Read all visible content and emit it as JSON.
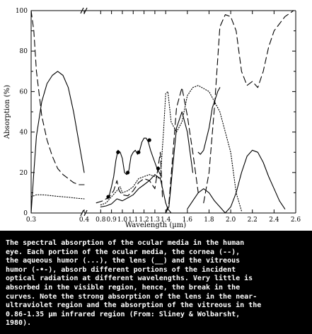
{
  "chart_data": {
    "type": "line",
    "title": "",
    "xlabel": "Wavelength  (µm)",
    "ylabel": "Absorption  (%)",
    "xlim_left": [
      0.3,
      0.4
    ],
    "xlim_right": [
      0.7,
      2.6
    ],
    "ylim": [
      0,
      100
    ],
    "x_ticks_left": [
      "0.3",
      "0.4"
    ],
    "x_ticks_right": [
      "0.8",
      "0.9",
      "1.0",
      "1.1",
      "1.2",
      "1.3",
      "1.4",
      "1.6",
      "1.8",
      "2.0",
      "2.2",
      "2.4",
      "2.6"
    ],
    "y_ticks": [
      "0",
      "20",
      "40",
      "60",
      "80",
      "100"
    ],
    "axis_break": "between 0.4 and 0.7 µm",
    "grid": false,
    "legend": "none (identified in caption)",
    "series": [
      {
        "key": "cornea",
        "style": "dashed",
        "segments": [
          {
            "x": [
              0.3,
              0.305,
              0.31,
              0.32,
              0.33,
              0.34,
              0.35,
              0.36,
              0.37,
              0.38,
              0.39,
              0.4
            ],
            "y": [
              100,
              90,
              70,
              48,
              36,
              28,
              22,
              19,
              17,
              15,
              14,
              14
            ]
          },
          {
            "x": [
              0.76,
              0.82,
              0.88,
              0.92,
              0.95,
              0.97,
              1.0,
              1.05,
              1.1,
              1.15,
              1.2,
              1.25,
              1.3,
              1.35,
              1.37
            ],
            "y": [
              5,
              6,
              8,
              11,
              16,
              11,
              9,
              8.5,
              11,
              15,
              17,
              16,
              12,
              30,
              8
            ]
          },
          {
            "x": [
              1.4,
              1.43,
              1.46,
              1.5,
              1.55,
              1.6,
              1.65,
              1.7
            ],
            "y": [
              0,
              5,
              25,
              52,
              62,
              48,
              30,
              10
            ]
          },
          {
            "x": [
              1.75,
              1.8,
              1.85,
              1.9,
              1.95,
              2.0,
              2.05,
              2.1,
              2.15,
              2.2,
              2.25,
              2.3,
              2.35,
              2.4,
              2.5,
              2.58
            ],
            "y": [
              5,
              20,
              52,
              92,
              98,
              97,
              90,
              70,
              63,
              65,
              62,
              70,
              82,
              90,
              97,
              100
            ]
          }
        ]
      },
      {
        "key": "aqueous humor",
        "style": "dotted",
        "segments": [
          {
            "x": [
              0.3,
              0.31,
              0.32,
              0.33,
              0.34,
              0.35,
              0.36,
              0.37,
              0.38,
              0.39,
              0.4
            ],
            "y": [
              8,
              9,
              9,
              8.8,
              8.5,
              8.2,
              8,
              7.8,
              7.5,
              7.2,
              7
            ]
          },
          {
            "x": [
              0.8,
              0.85,
              0.9,
              0.95,
              0.98,
              1.0,
              1.05,
              1.1,
              1.15,
              1.2,
              1.25,
              1.3,
              1.35,
              1.38,
              1.4,
              1.42,
              1.45,
              1.5,
              1.55,
              1.6,
              1.65,
              1.7,
              1.8,
              1.9,
              2.0,
              2.05,
              2.1
            ],
            "y": [
              4,
              5,
              8,
              11,
              13,
              10,
              11,
              13,
              17,
              18,
              19,
              18,
              17,
              40,
              59,
              60,
              45,
              40,
              45,
              58,
              62,
              63,
              60,
              50,
              30,
              10,
              1
            ]
          }
        ]
      },
      {
        "key": "lens",
        "style": "solid",
        "segments": [
          {
            "x": [
              0.3,
              0.305,
              0.31,
              0.32,
              0.33,
              0.34,
              0.35,
              0.36,
              0.37,
              0.38,
              0.39,
              0.4
            ],
            "y": [
              0,
              20,
              38,
              55,
              64,
              68,
              70,
              68,
              62,
              50,
              35,
              20
            ]
          },
          {
            "x": [
              0.8,
              0.85,
              0.9,
              0.95,
              1.0,
              1.05,
              1.1,
              1.15,
              1.2,
              1.25,
              1.3,
              1.35,
              1.38,
              1.4,
              1.42,
              1.45
            ],
            "y": [
              3,
              3.5,
              4.5,
              7,
              6,
              7.5,
              9,
              12,
              14,
              16,
              19,
              17,
              10,
              5,
              2,
              0
            ]
          },
          {
            "x": [
              1.4,
              1.43,
              1.46,
              1.5,
              1.55,
              1.6,
              1.65
            ],
            "y": [
              0,
              3,
              20,
              42,
              50,
              40,
              20
            ]
          },
          {
            "x": [
              1.6,
              1.65,
              1.7,
              1.75,
              1.8,
              1.85,
              1.9,
              1.95
            ],
            "y": [
              2,
              6,
              10,
              12,
              10,
              6,
              3,
              0
            ]
          },
          {
            "x": [
              1.7,
              1.72,
              1.75,
              1.8,
              1.83,
              1.85,
              1.88,
              1.9
            ],
            "y": [
              30,
              29,
              31,
              42,
              52,
              55,
              60,
              62
            ]
          },
          {
            "x": [
              1.95,
              2.0,
              2.05,
              2.1,
              2.15,
              2.2,
              2.25,
              2.3,
              2.35,
              2.4,
              2.45,
              2.5
            ],
            "y": [
              0,
              3,
              10,
              20,
              28,
              31,
              30,
              25,
              18,
              12,
              6,
              2
            ]
          }
        ]
      },
      {
        "key": "vitreous humor",
        "style": "solid with markers",
        "segments": [
          {
            "x": [
              0.86,
              0.88,
              0.9,
              0.92,
              0.94,
              0.96,
              0.98,
              1.0,
              1.02,
              1.04,
              1.06,
              1.08,
              1.1,
              1.12,
              1.14,
              1.16,
              1.18,
              1.2,
              1.22,
              1.24,
              1.26,
              1.28,
              1.3,
              1.32,
              1.35
            ],
            "y": [
              7,
              9,
              13,
              18,
              26,
              31,
              30,
              27,
              20,
              19,
              21,
              28,
              30,
              31,
              29,
              31,
              35,
              37,
              37,
              35,
              31,
              28,
              25,
              22,
              19
            ]
          },
          {
            "x": [
              0.87,
              0.96,
              1.05,
              1.15,
              1.25,
              1.33
            ],
            "y": [
              8,
              30,
              20,
              30,
              36,
              22
            ],
            "marker_only": true
          }
        ]
      }
    ]
  },
  "caption": {
    "lines": [
      "The spectral absorption of the ocular media in the human",
      "eye. Each portion of the ocular media, the cornea (--),",
      "the aqueous humor (...), the lens (__) and the vitreous",
      "humor (-•-), absorb different portions of the incident",
      "optical radiation at different wavelengths. Very little is",
      "absorbed in the visible region, hence, the break in the",
      "curves. Note the strong absorption of the lens in the near-",
      "ultraviolet region and the absorption of the vitreous in the",
      "0.86-1.35 µm infrared region (From: Sliney & Wolbarsht,",
      "1980)."
    ]
  }
}
